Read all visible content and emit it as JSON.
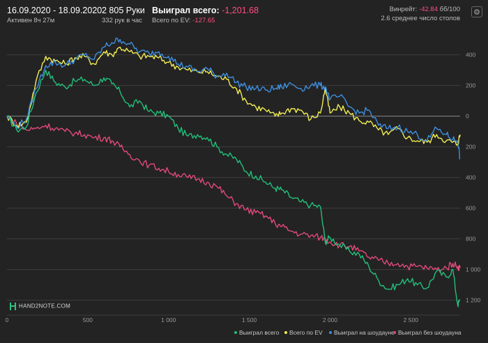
{
  "header": {
    "date_range": "16.09.2020 - 18.09.2020",
    "active": "Активен 8ч 27м",
    "hands": "2 805 Руки",
    "hands_per_hour": "332 рук в час",
    "won_label": "Выиграл всего:",
    "won_value": "-1,201.68",
    "ev_label": "Всего по EV:",
    "ev_value": "-127.65",
    "winrate_label": "Винрейт:",
    "winrate_value": "-42.84",
    "winrate_unit": "бб/100",
    "tables": "2.6 среднее число столов"
  },
  "logo": {
    "text": "HAND2NOTE.COM"
  },
  "icons": {
    "settings": "gear-icon"
  },
  "colors": {
    "total": "#21c07a",
    "ev": "#f2ee54",
    "showdown": "#3e8fe0",
    "nonshowdown": "#e2497a",
    "negative": "#ff4f81"
  },
  "chart_data": {
    "type": "line",
    "x_ticks": [
      0,
      500,
      1000,
      1500,
      2000,
      2500
    ],
    "x_tick_labels": [
      "0",
      "500",
      "1 000",
      "1 500",
      "2 000",
      "2 500"
    ],
    "y_ticks": [
      400,
      200,
      0,
      -200,
      -400,
      -600,
      -800,
      -1000,
      -1200
    ],
    "y_tick_labels": [
      "400",
      "200",
      "0",
      "200",
      "400",
      "600",
      "800",
      "1 000",
      "1 200"
    ],
    "xlim": [
      0,
      2805
    ],
    "ylim": [
      -1270,
      530
    ],
    "grid": true,
    "legend_position": "bottom-right",
    "series": [
      {
        "name": "Выиграл всего",
        "color": "#21c07a",
        "x": [
          0,
          60,
          120,
          180,
          240,
          300,
          360,
          420,
          480,
          540,
          600,
          650,
          700,
          760,
          820,
          880,
          940,
          1000,
          1060,
          1120,
          1180,
          1240,
          1300,
          1360,
          1420,
          1480,
          1540,
          1600,
          1660,
          1700,
          1760,
          1820,
          1880,
          1940,
          1970,
          2000,
          2060,
          2120,
          2180,
          2240,
          2300,
          2360,
          2420,
          2480,
          2540,
          2600,
          2660,
          2720,
          2760,
          2790,
          2805
        ],
        "y": [
          0,
          -90,
          -70,
          150,
          300,
          220,
          190,
          230,
          240,
          200,
          250,
          210,
          160,
          60,
          100,
          30,
          20,
          0,
          -80,
          -130,
          -120,
          -140,
          -200,
          -250,
          -280,
          -360,
          -390,
          -430,
          -470,
          -480,
          -530,
          -560,
          -580,
          -590,
          -820,
          -790,
          -840,
          -880,
          -900,
          -980,
          -1070,
          -1130,
          -1100,
          -1060,
          -1100,
          -1120,
          -1010,
          -1050,
          -1000,
          -1230,
          -1200
        ]
      },
      {
        "name": "Всего по EV",
        "color": "#f2ee54",
        "x": [
          0,
          60,
          120,
          180,
          240,
          300,
          360,
          420,
          480,
          540,
          600,
          650,
          700,
          760,
          820,
          880,
          940,
          1000,
          1060,
          1120,
          1180,
          1240,
          1300,
          1360,
          1420,
          1480,
          1540,
          1600,
          1660,
          1700,
          1760,
          1820,
          1880,
          1940,
          1970,
          2000,
          2060,
          2120,
          2180,
          2240,
          2300,
          2360,
          2420,
          2480,
          2540,
          2600,
          2660,
          2720,
          2760,
          2790,
          2805
        ],
        "y": [
          0,
          -60,
          -40,
          230,
          390,
          360,
          340,
          380,
          390,
          340,
          420,
          400,
          450,
          420,
          390,
          390,
          380,
          350,
          320,
          300,
          290,
          290,
          260,
          240,
          180,
          100,
          60,
          40,
          0,
          20,
          50,
          40,
          -20,
          20,
          180,
          20,
          60,
          20,
          -30,
          -40,
          -90,
          -120,
          -80,
          -140,
          -160,
          -170,
          -120,
          -160,
          -170,
          -180,
          -120
        ]
      },
      {
        "name": "Выиграл на шоудауне",
        "color": "#3e8fe0",
        "x": [
          0,
          60,
          120,
          180,
          240,
          300,
          360,
          420,
          480,
          540,
          600,
          650,
          700,
          760,
          820,
          880,
          940,
          1000,
          1060,
          1120,
          1180,
          1240,
          1300,
          1360,
          1420,
          1480,
          1540,
          1600,
          1660,
          1700,
          1760,
          1820,
          1880,
          1940,
          1970,
          2000,
          2060,
          2120,
          2180,
          2240,
          2300,
          2360,
          2420,
          2480,
          2540,
          2600,
          2660,
          2720,
          2760,
          2790,
          2805
        ],
        "y": [
          0,
          -70,
          -20,
          180,
          330,
          350,
          330,
          370,
          400,
          370,
          450,
          480,
          500,
          470,
          420,
          410,
          420,
          390,
          340,
          320,
          290,
          310,
          260,
          280,
          220,
          190,
          180,
          170,
          180,
          190,
          210,
          180,
          200,
          200,
          190,
          110,
          130,
          60,
          20,
          40,
          -60,
          -80,
          -70,
          -100,
          -120,
          -160,
          -80,
          -120,
          -150,
          -160,
          -280
        ]
      },
      {
        "name": "Выиграл без шоудауна",
        "color": "#e2497a",
        "x": [
          0,
          60,
          120,
          180,
          240,
          300,
          360,
          420,
          480,
          540,
          600,
          650,
          700,
          760,
          820,
          880,
          940,
          1000,
          1060,
          1120,
          1180,
          1240,
          1300,
          1360,
          1420,
          1480,
          1540,
          1600,
          1660,
          1700,
          1760,
          1820,
          1880,
          1940,
          1970,
          2000,
          2060,
          2120,
          2180,
          2240,
          2300,
          2360,
          2420,
          2480,
          2540,
          2600,
          2660,
          2720,
          2760,
          2790,
          2805
        ],
        "y": [
          0,
          -50,
          -90,
          -80,
          -60,
          -80,
          -100,
          -110,
          -120,
          -140,
          -140,
          -160,
          -200,
          -250,
          -290,
          -320,
          -340,
          -360,
          -380,
          -400,
          -410,
          -430,
          -460,
          -520,
          -570,
          -610,
          -630,
          -650,
          -700,
          -720,
          -750,
          -770,
          -780,
          -790,
          -800,
          -820,
          -840,
          -850,
          -880,
          -920,
          -940,
          -960,
          -960,
          -980,
          -980,
          -990,
          -1000,
          -990,
          -960,
          -980,
          -990
        ]
      }
    ]
  }
}
